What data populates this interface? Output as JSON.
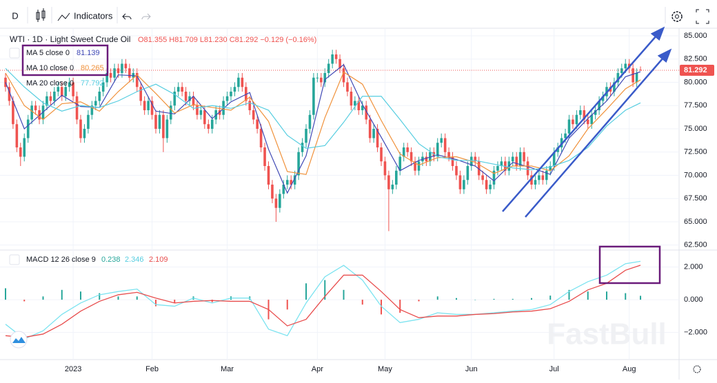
{
  "toolbar": {
    "interval": "D",
    "indicators": "Indicators"
  },
  "watermark": "FastBull",
  "chart_data": [
    {
      "type": "candlestick",
      "title": "WTI · 1D · Light Sweet Crude Oil",
      "ohlc_text": "O81.355 H81.709 L81.230 C81.292 −0.129 (−0.16%)",
      "up_color": "#26a69a",
      "down_color": "#ef5350",
      "xlim": [
        -1.47,
        179.27
      ],
      "xticks": [
        {
          "value": 18,
          "label": "2023"
        },
        {
          "value": 39,
          "label": "Feb"
        },
        {
          "value": 59,
          "label": "Mar"
        },
        {
          "value": 83,
          "label": "Apr"
        },
        {
          "value": 101,
          "label": "May"
        },
        {
          "value": 124,
          "label": "Jun"
        },
        {
          "value": 146,
          "label": "Jul"
        },
        {
          "value": 166,
          "label": "Aug"
        }
      ],
      "ylim": [
        62.04,
        85.74
      ],
      "yticks": [
        {
          "value": 62.5,
          "label": "62.500"
        },
        {
          "value": 65,
          "label": "65.000"
        },
        {
          "value": 67.5,
          "label": "67.500"
        },
        {
          "value": 70,
          "label": "70.000"
        },
        {
          "value": 72.5,
          "label": "72.500"
        },
        {
          "value": 75,
          "label": "75.000"
        },
        {
          "value": 77.5,
          "label": "77.500"
        },
        {
          "value": 80,
          "label": "80.000"
        },
        {
          "value": 82.5,
          "label": "82.500"
        },
        {
          "value": 85,
          "label": "85.000"
        }
      ],
      "open": [
        80.5,
        79.5,
        78,
        75.5,
        73,
        72,
        74,
        76,
        77.5,
        77,
        76,
        77.5,
        78.5,
        78,
        79,
        79.5,
        78.5,
        79.5,
        80,
        78.5,
        76,
        74,
        75,
        76.5,
        77.5,
        78,
        79,
        80,
        81,
        80.5,
        81.5,
        81,
        82,
        81.5,
        80.5,
        81,
        79.5,
        78,
        77,
        78,
        76.5,
        75,
        76.5,
        74,
        76,
        77.5,
        79,
        79.5,
        79,
        78,
        78.5,
        77.5,
        76.5,
        77,
        75.5,
        75,
        76,
        77,
        76.5,
        78,
        78.5,
        79,
        79.5,
        80.5,
        79.5,
        78,
        77,
        76,
        75,
        73,
        71,
        69,
        67.5,
        66.5,
        68,
        69,
        69.5,
        69,
        70,
        72.5,
        73.5,
        75,
        76.5,
        80.5,
        80.5,
        80,
        81,
        82,
        83,
        82.5,
        81.5,
        80,
        79,
        77.5,
        78,
        77,
        77.5,
        76,
        74,
        75,
        73,
        71.5,
        70,
        68.5,
        69,
        70.5,
        72,
        73,
        72.5,
        71.5,
        70.5,
        71.5,
        72,
        71.5,
        72.5,
        72,
        73.5,
        74,
        72.5,
        72,
        71,
        70,
        68.5,
        69.5,
        71,
        72,
        71.5,
        70,
        69.5,
        68.5,
        69,
        70.5,
        71,
        71.5,
        70.5,
        71.5,
        72,
        71,
        72.5,
        71.5,
        70,
        69,
        69.5,
        70,
        69.5,
        70.5,
        71,
        72.5,
        73,
        74,
        74.5,
        76,
        75.5,
        76.5,
        77,
        76,
        75.5,
        76.5,
        77,
        78,
        78.5,
        79.5,
        79,
        80,
        81,
        81.5,
        82,
        81.5,
        80,
        81.355
      ],
      "high": [
        81,
        80,
        78.5,
        76,
        73.5,
        74.5,
        76.5,
        78,
        78,
        77.5,
        78,
        79,
        79,
        79.5,
        80,
        80,
        80,
        80.5,
        80.5,
        79,
        76.5,
        75.5,
        77,
        78,
        78.5,
        79.5,
        80.5,
        81.5,
        81.5,
        82,
        82,
        82.5,
        82.5,
        82,
        81.5,
        81.5,
        80,
        78.5,
        78.5,
        78.5,
        77,
        77,
        77,
        76.5,
        78,
        79.5,
        80,
        80,
        79.5,
        79,
        79,
        78,
        77.5,
        77.5,
        76,
        76.5,
        77.5,
        77.5,
        78.5,
        79,
        79.5,
        80,
        81,
        81,
        80,
        78.5,
        77.5,
        76.5,
        75.5,
        73.5,
        71.5,
        69.5,
        68,
        68.5,
        69.5,
        70,
        70,
        70.5,
        73,
        74,
        75.5,
        77,
        81,
        81,
        81,
        81.5,
        82.5,
        83.5,
        83.5,
        83,
        82,
        80.5,
        79.5,
        78.5,
        78.5,
        78,
        78,
        76.5,
        75.5,
        75.5,
        73.5,
        72,
        70.5,
        69.5,
        71,
        72.5,
        73.5,
        73.5,
        73,
        72,
        72,
        72.5,
        72.5,
        73,
        73,
        74,
        74.5,
        74.5,
        73,
        72.5,
        71.5,
        70.5,
        70,
        71.5,
        72.5,
        72.5,
        72,
        70.5,
        70,
        69.5,
        71,
        71.5,
        72,
        72,
        72,
        72.5,
        72.5,
        73,
        73,
        72,
        70.5,
        70,
        70.5,
        70.5,
        71,
        71.5,
        73,
        73.5,
        74.5,
        75,
        76.5,
        76.5,
        77,
        77.5,
        77.5,
        76.5,
        77,
        77.5,
        78.5,
        79,
        80,
        80,
        80.5,
        81.5,
        82,
        82.5,
        82.5,
        82,
        81.5,
        81.709
      ],
      "low": [
        79,
        77.5,
        75,
        72.5,
        71,
        71.5,
        73.5,
        75.5,
        76.5,
        75.5,
        75.5,
        77,
        77.5,
        77.5,
        78.5,
        78,
        78,
        79,
        78,
        75.5,
        73.5,
        73.5,
        74.5,
        76,
        77,
        77.5,
        78.5,
        79.5,
        80,
        80,
        80.5,
        80.5,
        81,
        80,
        80,
        79,
        77.5,
        76.5,
        76.5,
        76,
        74.5,
        74.5,
        72.5,
        73.5,
        75.5,
        77,
        78.5,
        78.5,
        77.5,
        77.5,
        77,
        76,
        76,
        75,
        74.5,
        74.5,
        75.5,
        76,
        76,
        77.5,
        78,
        78.5,
        79,
        79,
        77.5,
        76.5,
        75.5,
        74.5,
        72.5,
        70.5,
        68.5,
        67,
        65,
        66,
        67.5,
        68.5,
        68.5,
        68.5,
        69.5,
        72,
        73,
        74.5,
        76,
        80,
        79.5,
        79.5,
        80.5,
        81.5,
        82,
        81,
        79.5,
        78.5,
        77,
        77,
        76.5,
        76.5,
        75.5,
        73.5,
        73.5,
        72.5,
        71,
        69.5,
        64,
        68,
        68.5,
        70,
        71.5,
        72,
        71,
        70,
        70,
        71,
        71,
        71,
        71.5,
        71.5,
        73,
        72,
        71.5,
        70.5,
        69.5,
        68,
        68,
        69,
        70.5,
        71,
        69.5,
        69,
        68,
        68,
        68.5,
        70,
        70.5,
        70,
        70,
        71,
        70.5,
        70.5,
        71,
        69.5,
        68.5,
        68.5,
        69,
        69,
        69,
        70,
        70.5,
        72,
        72.5,
        73.5,
        74,
        75,
        75,
        76,
        75.5,
        75,
        75,
        76,
        76.5,
        77.5,
        78,
        78.5,
        78.5,
        79.5,
        80.5,
        81,
        81,
        79.5,
        79.5,
        81.23
      ],
      "close": [
        79.5,
        78,
        75.5,
        73,
        72,
        74,
        76,
        77.5,
        77,
        76,
        77.5,
        78.5,
        78,
        79,
        79.5,
        78.5,
        79.5,
        80,
        78.5,
        76,
        74,
        75,
        76.5,
        77.5,
        78,
        79,
        80,
        81,
        80.5,
        81.5,
        81,
        82,
        81.5,
        80.5,
        81,
        79.5,
        78,
        77,
        78,
        76.5,
        75,
        76.5,
        74,
        76,
        77.5,
        79,
        79.5,
        79,
        78,
        78.5,
        77.5,
        76.5,
        77,
        75.5,
        75,
        76,
        77,
        76.5,
        78,
        78.5,
        79,
        79.5,
        80.5,
        79.5,
        78,
        77,
        76,
        75,
        73,
        71,
        69,
        67.5,
        66.5,
        68,
        69,
        69.5,
        69,
        70,
        72.5,
        73.5,
        75,
        76.5,
        80.5,
        80.5,
        80,
        81,
        82,
        83,
        82.5,
        81.5,
        80,
        79,
        77.5,
        78,
        77,
        77.5,
        76,
        74,
        75,
        73,
        71.5,
        70,
        68.5,
        69,
        70.5,
        72,
        73,
        72.5,
        71.5,
        70.5,
        71.5,
        72,
        71.5,
        72.5,
        72,
        73.5,
        74,
        72.5,
        72,
        71,
        70,
        68.5,
        69.5,
        71,
        72,
        71.5,
        70,
        69.5,
        68.5,
        69,
        70.5,
        71,
        71.5,
        70.5,
        71.5,
        72,
        71,
        72.5,
        71.5,
        70,
        69,
        69.5,
        70,
        69.5,
        70.5,
        71,
        72.5,
        73,
        74,
        74.5,
        76,
        75.5,
        76.5,
        77,
        76,
        75.5,
        76.5,
        77,
        78,
        78.5,
        79.5,
        79,
        80,
        81,
        81.5,
        82,
        81.5,
        80,
        81,
        81.292
      ],
      "ma_x": [
        0,
        5,
        10,
        15,
        20,
        25,
        30,
        35,
        40,
        45,
        50,
        55,
        60,
        65,
        70,
        75,
        80,
        85,
        90,
        95,
        100,
        105,
        110,
        115,
        120,
        125,
        130,
        135,
        140,
        145,
        150,
        155,
        160,
        165,
        169
      ],
      "series": [
        {
          "name": "MA 5 close 0",
          "color": "#3f48b5",
          "values": [
            80,
            75,
            76.8,
            78.6,
            77.4,
            77.3,
            80.8,
            80.7,
            76.9,
            76.6,
            78.5,
            76.1,
            77.9,
            78.9,
            72.8,
            68.1,
            72.1,
            80.3,
            81.9,
            77.6,
            74.1,
            70.5,
            71.6,
            72.2,
            71.7,
            71,
            69.4,
            71.4,
            70.8,
            70.1,
            74,
            76.1,
            78,
            80.6,
            81.139
          ]
        },
        {
          "name": "MA 10 close 0",
          "color": "#f0913a",
          "values": [
            81,
            77.5,
            76,
            77.7,
            77.9,
            76.9,
            79,
            80.8,
            78.8,
            76.7,
            77.6,
            77.3,
            77,
            78.4,
            75.8,
            70.4,
            70.1,
            76.2,
            81.1,
            79.8,
            75.9,
            72.3,
            71.1,
            71.9,
            72,
            71.4,
            70.2,
            71,
            71,
            70.5,
            72.1,
            75,
            77.1,
            79.3,
            80.265
          ]
        },
        {
          "name": "MA 20 close 0",
          "color": "#55cde0",
          "values": [
            81.5,
            79.5,
            77.8,
            76.9,
            77.5,
            77.3,
            78,
            79,
            79.8,
            78.7,
            77.2,
            77.5,
            77.2,
            77.8,
            77,
            74.3,
            72.9,
            73.2,
            75.7,
            78.5,
            78.5,
            76,
            73.4,
            72,
            71.6,
            71.6,
            71.2,
            70.8,
            70.6,
            70.9,
            71.6,
            73,
            75.3,
            77,
            77.792
          ]
        }
      ]
    },
    {
      "type": "macd",
      "title": "MACD 12 26 close 9",
      "xlim": [
        -1.47,
        179.27
      ],
      "ylim": [
        -3.66,
        2.95
      ],
      "yticks": [
        {
          "value": -2,
          "label": "−2.000"
        },
        {
          "value": 0,
          "label": "0.000"
        },
        {
          "value": 2,
          "label": "2.000"
        }
      ],
      "x": [
        0,
        5,
        10,
        15,
        20,
        25,
        30,
        35,
        40,
        45,
        50,
        55,
        60,
        65,
        70,
        75,
        80,
        85,
        90,
        95,
        100,
        105,
        110,
        115,
        120,
        125,
        130,
        135,
        140,
        145,
        150,
        155,
        160,
        165,
        169
      ],
      "histogram": {
        "up_color": "#26a69a",
        "down_color": "#ef5350",
        "values": [
          0.7,
          -0.1,
          0.2,
          0.6,
          0.5,
          0.4,
          0.2,
          0.2,
          -0.4,
          -0.2,
          0.2,
          -0.15,
          0.2,
          0.2,
          -1.2,
          -0.6,
          1,
          1.2,
          0.6,
          -0.3,
          -0.9,
          -0.8,
          -0.1,
          0.2,
          0.1,
          0,
          0.05,
          0.05,
          0.1,
          0.25,
          0.6,
          0.5,
          0.5,
          0.4,
          0.238
        ]
      },
      "series": [
        {
          "color": "#7be3f0",
          "values": [
            -1.5,
            -2.4,
            -1.9,
            -0.9,
            -0.2,
            0.3,
            0.5,
            0.65,
            -0.3,
            -0.4,
            0.1,
            -0.2,
            0.1,
            0.1,
            -1.8,
            -2.2,
            -0.2,
            1.4,
            2.1,
            1.2,
            -0.4,
            -1.4,
            -1.2,
            -0.8,
            -0.9,
            -0.9,
            -0.8,
            -0.7,
            -0.6,
            -0.3,
            0.5,
            1.1,
            1.5,
            2.2,
            2.346
          ]
        },
        {
          "color": "#e84c4c",
          "values": [
            -2.2,
            -2.3,
            -2.1,
            -1.5,
            -0.7,
            -0.1,
            0.3,
            0.45,
            0.1,
            -0.2,
            -0.1,
            -0.05,
            -0.1,
            -0.1,
            -0.6,
            -1.6,
            -1.2,
            0.2,
            1.5,
            1.5,
            0.5,
            -0.6,
            -1.1,
            -1,
            -1,
            -0.9,
            -0.85,
            -0.75,
            -0.7,
            -0.55,
            -0.1,
            0.6,
            1,
            1.8,
            2.109
          ]
        }
      ]
    }
  ]
}
